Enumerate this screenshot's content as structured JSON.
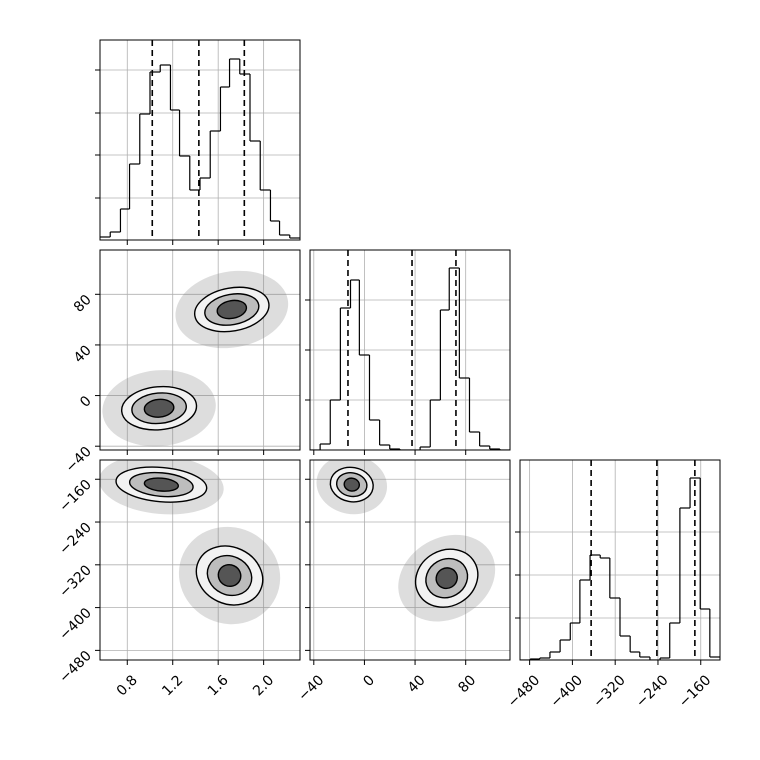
{
  "chart_data": {
    "type": "corner",
    "params": [
      {
        "lim": [
          0.56,
          2.32
        ],
        "ticks": [
          0.8,
          1.2,
          1.6,
          {
            "value": 2.0,
            "label": "2.0"
          }
        ]
      },
      {
        "lim": [
          -43,
          115
        ],
        "ticks": [
          {
            "value": -40,
            "label": "−40"
          },
          0,
          40,
          80
        ]
      },
      {
        "lim": [
          -498,
          -124
        ],
        "ticks": [
          {
            "value": -480,
            "label": "−480"
          },
          {
            "value": -400,
            "label": "−400"
          },
          {
            "value": -320,
            "label": "−320"
          },
          {
            "value": -240,
            "label": "−240"
          },
          {
            "value": -160,
            "label": "−160"
          }
        ]
      }
    ],
    "histograms": [
      {
        "bins": [
          0.56,
          0.65,
          0.74,
          0.82,
          0.91,
          1.0,
          1.09,
          1.18,
          1.26,
          1.35,
          1.44,
          1.53,
          1.62,
          1.7,
          1.79,
          1.88,
          1.97,
          2.06,
          2.14,
          2.23,
          2.32
        ],
        "counts": [
          3,
          8,
          31,
          76,
          126,
          168,
          175,
          130,
          84,
          50,
          62,
          109,
          153,
          181,
          166,
          99,
          50,
          19,
          5,
          2
        ],
        "ylim": [
          0,
          200
        ],
        "yticks": [
          42,
          85,
          127,
          170
        ],
        "quantiles": [
          1.02,
          1.43,
          1.83
        ]
      },
      {
        "bins": [
          -43,
          -35,
          -27,
          -19,
          -11,
          -4,
          4,
          12,
          20,
          28,
          36,
          44,
          52,
          60,
          67,
          75,
          83,
          91,
          99,
          107,
          115
        ],
        "counts": [
          0,
          6,
          50,
          142,
          170,
          95,
          30,
          5,
          1,
          0,
          0,
          3,
          50,
          140,
          182,
          72,
          18,
          4,
          1,
          0
        ],
        "ylim": [
          0,
          200
        ],
        "yticks": [
          50,
          100,
          150
        ],
        "quantiles": [
          -13,
          37.6,
          72.3
        ]
      },
      {
        "bins": [
          -498,
          -479,
          -461,
          -442,
          -423,
          -404,
          -386,
          -367,
          -348,
          -330,
          -311,
          -292,
          -274,
          -255,
          -236,
          -218,
          -199,
          -180,
          -161,
          -143,
          -124
        ],
        "counts": [
          0,
          1,
          2,
          8,
          20,
          37,
          80,
          105,
          102,
          62,
          24,
          8,
          3,
          0,
          2,
          37,
          152,
          182,
          51,
          3
        ],
        "ylim": [
          0,
          200
        ],
        "yticks": [
          42,
          85,
          128
        ],
        "quantiles": [
          -365,
          -242,
          -171
        ]
      }
    ],
    "panels": [
      {
        "x": 0,
        "y": 1,
        "clusters": [
          {
            "center": [
              1.08,
              -10
            ],
            "angle": -5,
            "radii": [
              [
                0.5,
                30
              ],
              [
                0.33,
                17
              ],
              [
                0.24,
                12
              ],
              [
                0.13,
                7
              ]
            ]
          },
          {
            "center": [
              1.72,
              68
            ],
            "angle": -10,
            "radii": [
              [
                0.5,
                30
              ],
              [
                0.33,
                17
              ],
              [
                0.24,
                12
              ],
              [
                0.13,
                7
              ]
            ]
          }
        ]
      },
      {
        "x": 0,
        "y": 2,
        "clusters": [
          {
            "center": [
              1.1,
              -170
            ],
            "angle": 5,
            "radii": [
              [
                0.55,
                55
              ],
              [
                0.4,
                32
              ],
              [
                0.28,
                22
              ],
              [
                0.15,
                12
              ]
            ]
          },
          {
            "center": [
              1.7,
              -340
            ],
            "angle": 25,
            "radii": [
              [
                0.45,
                90
              ],
              [
                0.3,
                53
              ],
              [
                0.2,
                36
              ],
              [
                0.1,
                20
              ]
            ]
          }
        ]
      },
      {
        "x": 1,
        "y": 2,
        "clusters": [
          {
            "center": [
              -10,
              -170
            ],
            "angle": 10,
            "radii": [
              [
                28,
                55
              ],
              [
                17,
                32
              ],
              [
                12,
                22
              ],
              [
                6,
                12
              ]
            ]
          },
          {
            "center": [
              65,
              -345
            ],
            "angle": 60,
            "radii": [
              [
                32,
                95
              ],
              [
                22,
                60
              ],
              [
                15,
                40
              ],
              [
                8,
                20
              ]
            ]
          }
        ]
      }
    ]
  }
}
